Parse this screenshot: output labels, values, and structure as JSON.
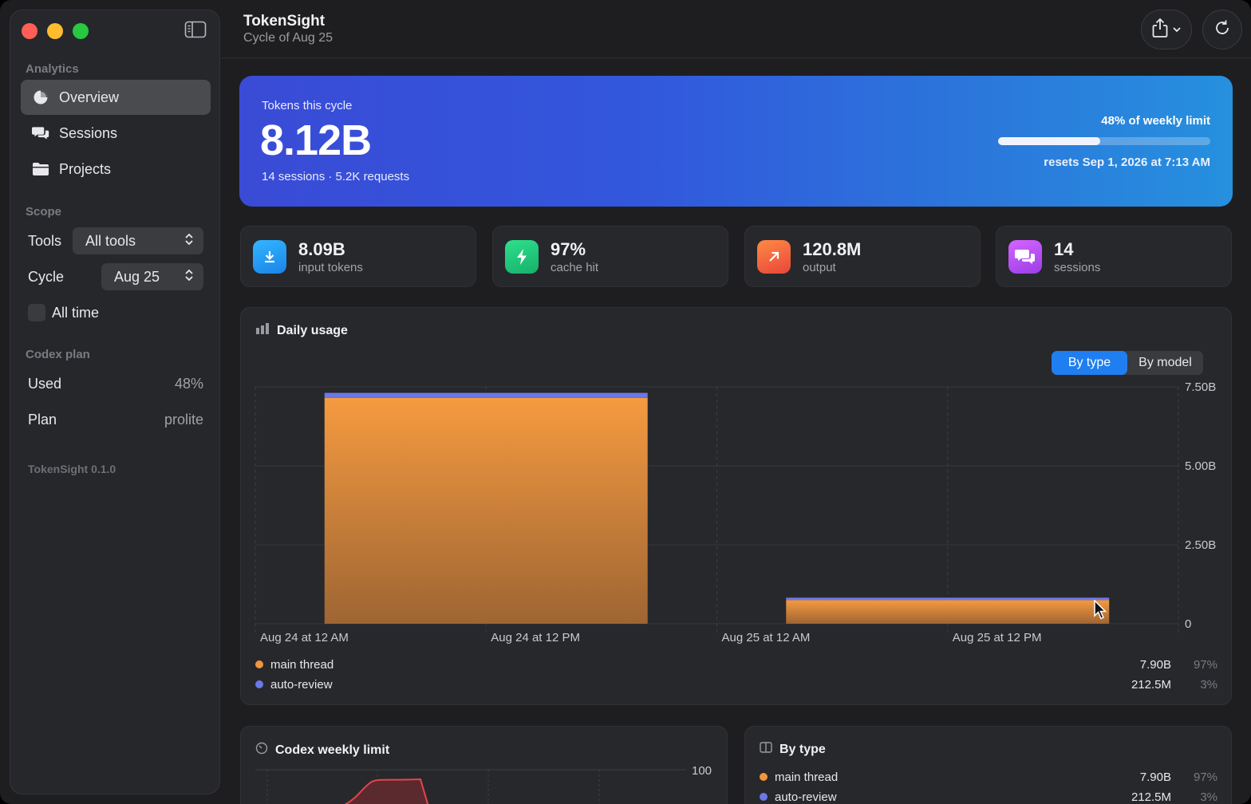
{
  "app": {
    "title": "TokenSight",
    "subtitle": "Cycle of Aug 25",
    "version": "TokenSight 0.1.0"
  },
  "sidebar": {
    "analytics_label": "Analytics",
    "nav": [
      {
        "label": "Overview",
        "icon": "pie-chart-icon",
        "active": true
      },
      {
        "label": "Sessions",
        "icon": "chat-bubbles-icon"
      },
      {
        "label": "Projects",
        "icon": "folder-icon"
      }
    ],
    "scope_label": "Scope",
    "tools_label": "Tools",
    "tools_value": "All tools",
    "cycle_label": "Cycle",
    "cycle_value": "Aug 25",
    "all_time_label": "All time",
    "plan_section_label": "Codex plan",
    "used_label": "Used",
    "used_value": "48%",
    "plan_label": "Plan",
    "plan_value": "prolite"
  },
  "hero": {
    "label": "Tokens this cycle",
    "value": "8.12B",
    "meta": "14 sessions · 5.2K requests",
    "limit_text": "48% of weekly limit",
    "limit_fraction": 0.48,
    "reset_text": "resets Sep 1, 2026 at 7:13 AM"
  },
  "stats": [
    {
      "value": "8.09B",
      "label": "input tokens",
      "icon": "download-arrow-icon",
      "color": "#1f9bf0"
    },
    {
      "value": "97%",
      "label": "cache hit",
      "icon": "lightning-bolt-icon",
      "color": "#22c77a"
    },
    {
      "value": "120.8M",
      "label": "output",
      "icon": "arrow-up-right-icon",
      "color": "#f0643a"
    },
    {
      "value": "14",
      "label": "sessions",
      "icon": "chat-bubbles-icon",
      "color": "#c14ff0"
    }
  ],
  "daily": {
    "title": "Daily usage",
    "toggle": [
      "By type",
      "By model"
    ],
    "legend": [
      {
        "name": "main thread",
        "value": "7.90B",
        "pct": "97%",
        "color": "#f0963c"
      },
      {
        "name": "auto-review",
        "value": "212.5M",
        "pct": "3%",
        "color": "#6b78e8"
      }
    ]
  },
  "chart_data": {
    "type": "bar",
    "stacked": true,
    "categories": [
      "Aug 24",
      "Aug 25"
    ],
    "x_tick_labels": [
      "Aug 24 at 12 AM",
      "Aug 24 at 12 PM",
      "Aug 25 at 12 AM",
      "Aug 25 at 12 PM"
    ],
    "y_tick_labels": [
      "0",
      "2.50B",
      "5.00B",
      "7.50B"
    ],
    "ylim": [
      0,
      7500000000
    ],
    "series": [
      {
        "name": "main thread",
        "values": [
          7150000000,
          750000000
        ],
        "color": "#f0963c"
      },
      {
        "name": "auto-review",
        "values": [
          160000000,
          52000000
        ],
        "color": "#6b78e8"
      }
    ],
    "grid": true
  },
  "weekly": {
    "title": "Codex weekly limit",
    "y_tick": "100"
  },
  "bytype": {
    "title": "By type",
    "rows": [
      {
        "name": "main thread",
        "value": "7.90B",
        "pct": "97%",
        "color": "#f0963c"
      },
      {
        "name": "auto-review",
        "value": "212.5M",
        "pct": "3%",
        "color": "#6b78e8"
      }
    ]
  }
}
